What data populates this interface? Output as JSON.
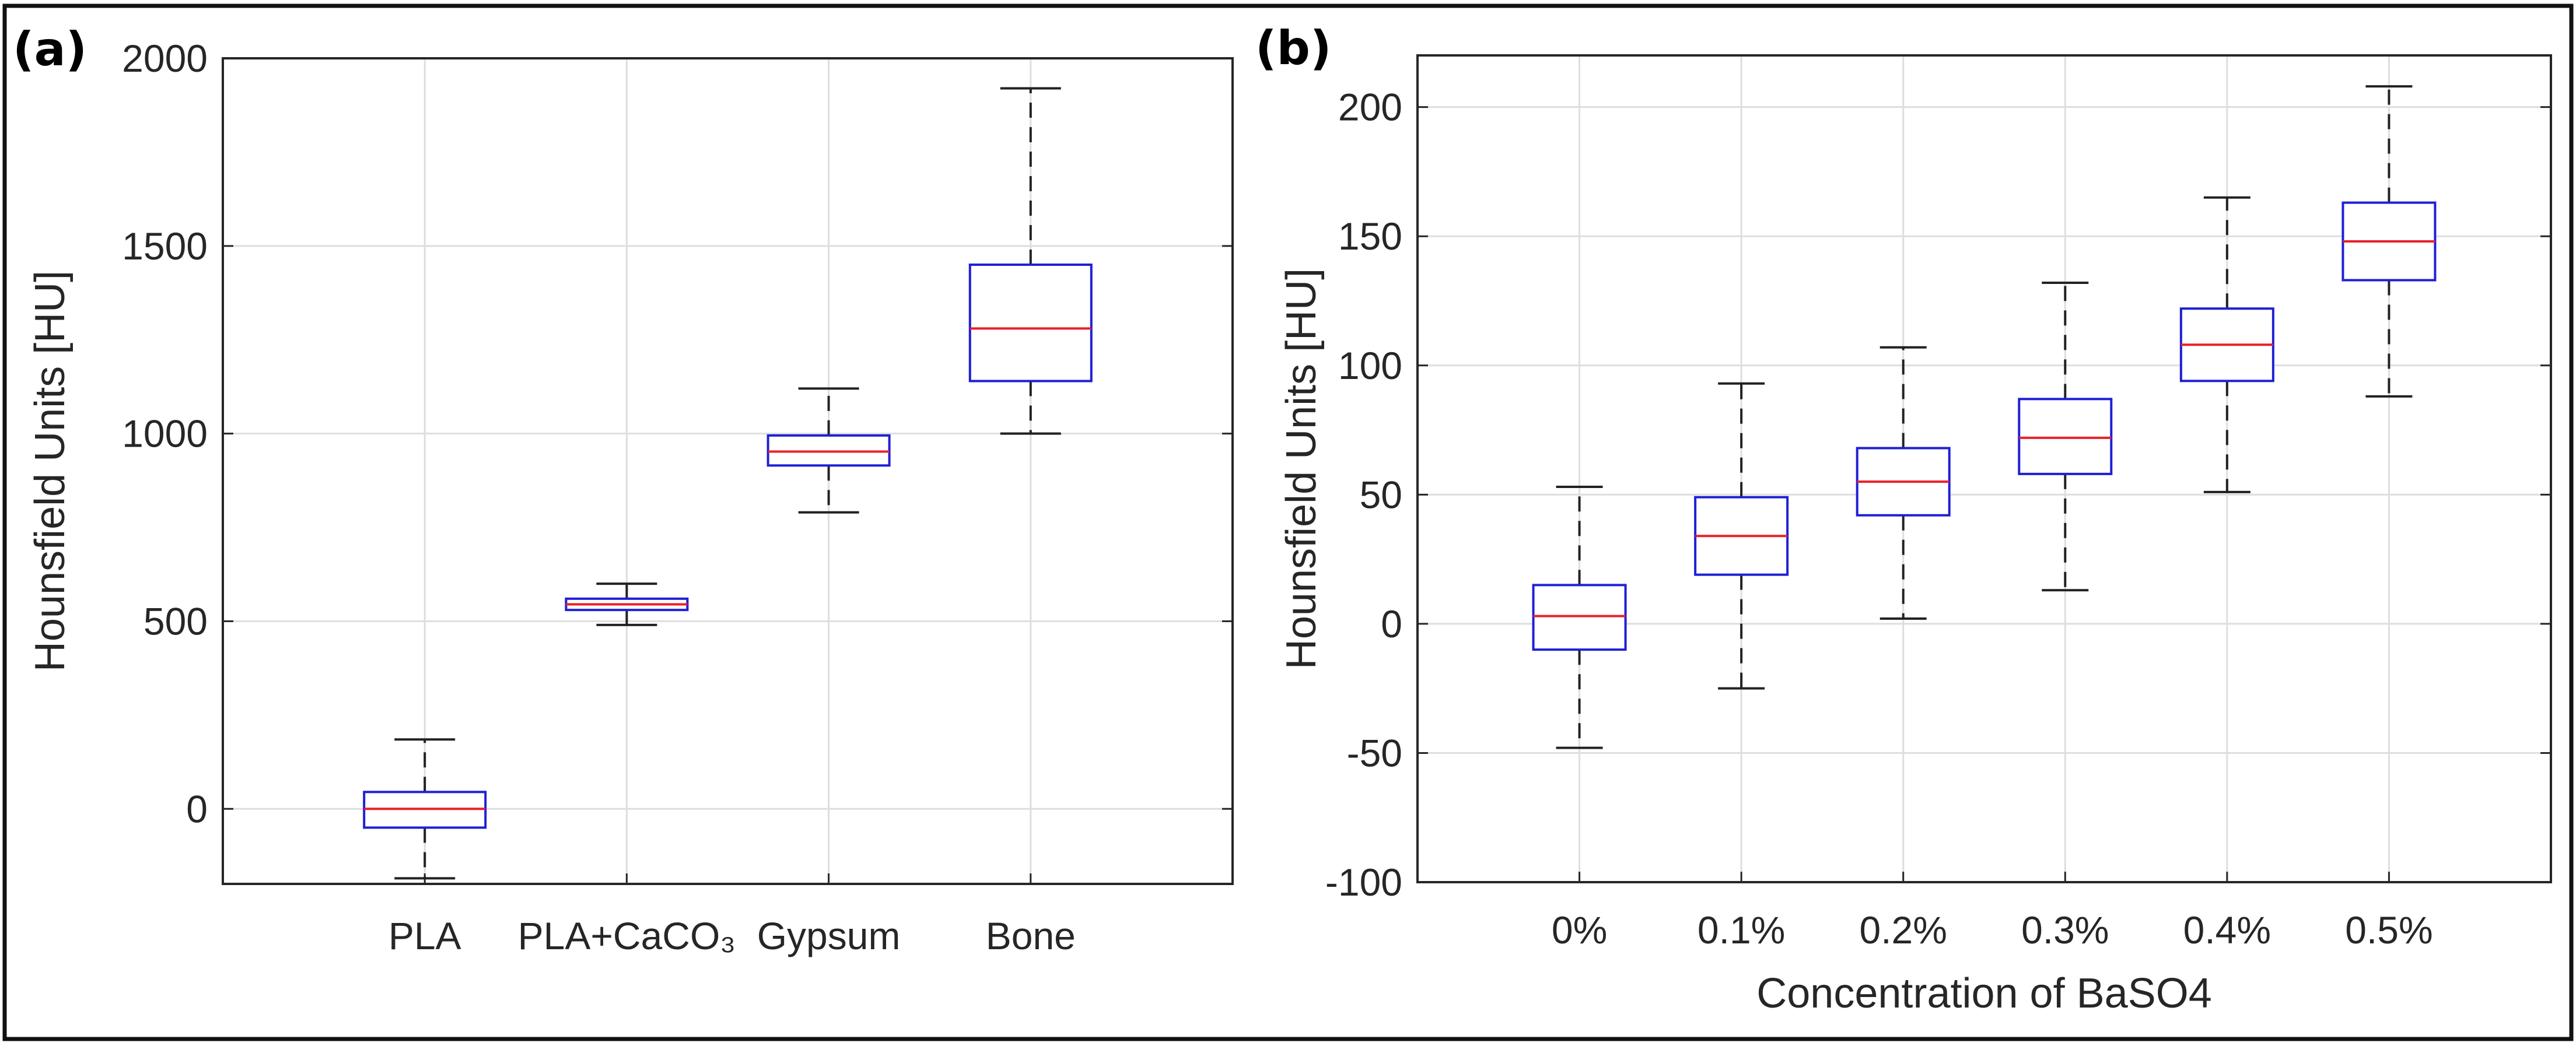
{
  "chart_data": [
    {
      "type": "box",
      "panel_label": "(a)",
      "ylabel": "Hounsfield Units [HU]",
      "xlabel": "",
      "ylim": [
        -200,
        2000
      ],
      "yticks": [
        0,
        500,
        1000,
        1500,
        2000
      ],
      "ytick_labels": [
        "0",
        "500",
        "1000",
        "1500",
        "2000"
      ],
      "grid": true,
      "categories": [
        "PLA",
        "PLA+CaCO₃",
        "Gypsum",
        "Bone"
      ],
      "boxes": [
        {
          "name": "PLA",
          "whisker_low": -185,
          "q1": -50,
          "median": 0,
          "q3": 45,
          "whisker_high": 185
        },
        {
          "name": "PLA+CaCO₃",
          "whisker_low": 490,
          "q1": 530,
          "median": 545,
          "q3": 560,
          "whisker_high": 600
        },
        {
          "name": "Gypsum",
          "whisker_low": 790,
          "q1": 915,
          "median": 952,
          "q3": 995,
          "whisker_high": 1120
        },
        {
          "name": "Bone",
          "whisker_low": 1000,
          "q1": 1140,
          "median": 1280,
          "q3": 1450,
          "whisker_high": 1920
        }
      ]
    },
    {
      "type": "box",
      "panel_label": "(b)",
      "ylabel": "Hounsfield Units [HU]",
      "xlabel": "Concentration of BaSO4",
      "ylim": [
        -100,
        220
      ],
      "yticks": [
        -100,
        -50,
        0,
        50,
        100,
        150,
        200
      ],
      "ytick_labels": [
        "-100",
        "-50",
        "0",
        "50",
        "100",
        "150",
        "200"
      ],
      "grid": true,
      "categories": [
        "0%",
        "0.1%",
        "0.2%",
        "0.3%",
        "0.4%",
        "0.5%"
      ],
      "boxes": [
        {
          "name": "0%",
          "whisker_low": -48,
          "q1": -10,
          "median": 3,
          "q3": 15,
          "whisker_high": 53
        },
        {
          "name": "0.1%",
          "whisker_low": -25,
          "q1": 19,
          "median": 34,
          "q3": 49,
          "whisker_high": 93
        },
        {
          "name": "0.2%",
          "whisker_low": 2,
          "q1": 42,
          "median": 55,
          "q3": 68,
          "whisker_high": 107
        },
        {
          "name": "0.3%",
          "whisker_low": 13,
          "q1": 58,
          "median": 72,
          "q3": 87,
          "whisker_high": 132
        },
        {
          "name": "0.4%",
          "whisker_low": 51,
          "q1": 94,
          "median": 108,
          "q3": 122,
          "whisker_high": 165
        },
        {
          "name": "0.5%",
          "whisker_low": 88,
          "q1": 133,
          "median": 148,
          "q3": 163,
          "whisker_high": 208
        }
      ]
    }
  ],
  "colors": {
    "box": "#1f1fd6",
    "median": "#e8202a",
    "whisker": "#222222",
    "grid": "#dedede",
    "axis": "#262626"
  }
}
